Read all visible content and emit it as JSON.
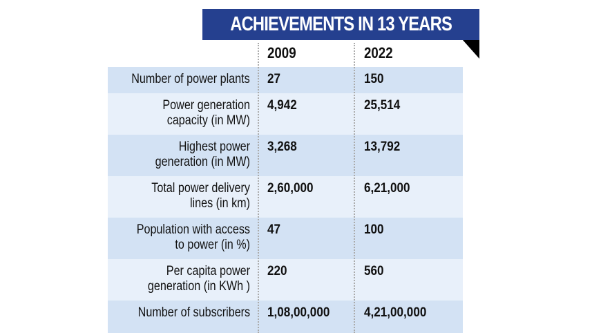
{
  "title": "ACHIEVEMENTS IN 13 YEARS",
  "colors": {
    "banner": "#25408f",
    "row_dark": "#d3e2f4",
    "row_light": "#e8f0fa"
  },
  "columns": [
    "2009",
    "2022"
  ],
  "rows": [
    {
      "label": "Number of power plants",
      "v2009": "27",
      "v2022": "150"
    },
    {
      "label": "Power generation capacity (in MW)",
      "v2009": "4,942",
      "v2022": "25,514"
    },
    {
      "label": "Highest power generation (in MW)",
      "v2009": "3,268",
      "v2022": "13,792"
    },
    {
      "label": "Total power delivery lines (in km)",
      "v2009": "2,60,000",
      "v2022": "6,21,000"
    },
    {
      "label": "Population with access to power (in %)",
      "v2009": "47",
      "v2022": "100"
    },
    {
      "label": "Per capita power generation (in KWh )",
      "v2009": "220",
      "v2022": "560"
    },
    {
      "label": "Number of subscribers",
      "v2009": "1,08,00,000",
      "v2022": "4,21,00,000"
    }
  ]
}
